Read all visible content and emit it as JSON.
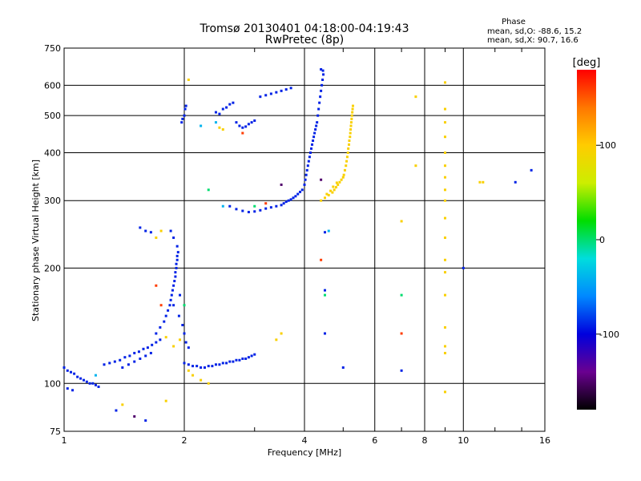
{
  "chart_data": {
    "type": "scatter",
    "title": "Tromsø 20130401 04:18:00-04:19:43",
    "subtitle": "RwPretec (8p)",
    "xlabel": "Frequency [MHz]",
    "ylabel": "Stationary phase Virtual Height [km]",
    "x_scale": "log",
    "y_scale": "log",
    "xlim": [
      1,
      16
    ],
    "ylim": [
      75,
      750
    ],
    "grid": true,
    "x_ticks": [
      1,
      2,
      4,
      6,
      8,
      10,
      16
    ],
    "y_ticks": [
      75,
      100,
      200,
      300,
      400,
      500,
      600,
      750
    ],
    "colorbar": {
      "label": "[deg]",
      "ticks": [
        -100,
        0,
        100
      ],
      "range": [
        -180,
        180
      ],
      "palette": [
        "#000000",
        "#6a0090",
        "#0000dd",
        "#0088ff",
        "#00dddd",
        "#00dd00",
        "#ccee00",
        "#ffcc00",
        "#ff7700",
        "#ff0000"
      ]
    },
    "stats": {
      "heading": "Phase",
      "o_line": "mean, sd,O: -88.6, 15.2",
      "x_line": "mean, sd,X:  90.7, 16.6"
    },
    "series": [
      {
        "mode": "O",
        "phase": -90,
        "points": [
          [
            1.0,
            110
          ],
          [
            1.02,
            108
          ],
          [
            1.04,
            107
          ],
          [
            1.06,
            106
          ],
          [
            1.08,
            104
          ],
          [
            1.1,
            103
          ],
          [
            1.12,
            102
          ],
          [
            1.14,
            101
          ],
          [
            1.16,
            100
          ],
          [
            1.18,
            100
          ],
          [
            1.2,
            99
          ],
          [
            1.22,
            98
          ],
          [
            1.02,
            97
          ],
          [
            1.05,
            96
          ],
          [
            1.26,
            112
          ],
          [
            1.3,
            113
          ],
          [
            1.34,
            114
          ],
          [
            1.38,
            115
          ],
          [
            1.42,
            117
          ],
          [
            1.46,
            118
          ],
          [
            1.5,
            120
          ],
          [
            1.54,
            121
          ],
          [
            1.58,
            123
          ],
          [
            1.62,
            124
          ],
          [
            1.66,
            126
          ],
          [
            1.7,
            128
          ],
          [
            1.74,
            130
          ],
          [
            1.4,
            110
          ],
          [
            1.45,
            112
          ],
          [
            1.5,
            114
          ],
          [
            1.55,
            116
          ],
          [
            1.6,
            118
          ],
          [
            1.65,
            120
          ],
          [
            1.7,
            135
          ],
          [
            1.74,
            140
          ],
          [
            1.78,
            145
          ],
          [
            1.8,
            150
          ],
          [
            1.82,
            155
          ],
          [
            1.84,
            160
          ],
          [
            1.85,
            165
          ],
          [
            1.86,
            170
          ],
          [
            1.87,
            175
          ],
          [
            1.88,
            180
          ],
          [
            1.89,
            185
          ],
          [
            1.9,
            190
          ],
          [
            1.9,
            195
          ],
          [
            1.91,
            200
          ],
          [
            1.91,
            205
          ],
          [
            1.92,
            210
          ],
          [
            1.92,
            215
          ],
          [
            1.93,
            220
          ],
          [
            1.92,
            228
          ],
          [
            1.88,
            240
          ],
          [
            1.85,
            250
          ],
          [
            1.88,
            160
          ],
          [
            1.94,
            150
          ],
          [
            1.98,
            142
          ],
          [
            2.0,
            135
          ],
          [
            2.02,
            128
          ],
          [
            2.05,
            124
          ],
          [
            1.95,
            170
          ],
          [
            2.0,
            113
          ],
          [
            2.05,
            112
          ],
          [
            2.1,
            111
          ],
          [
            2.15,
            111
          ],
          [
            2.2,
            110
          ],
          [
            2.25,
            110
          ],
          [
            2.3,
            111
          ],
          [
            2.35,
            111
          ],
          [
            2.4,
            112
          ],
          [
            2.45,
            112
          ],
          [
            2.5,
            113
          ],
          [
            2.55,
            113
          ],
          [
            2.6,
            114
          ],
          [
            2.65,
            114
          ],
          [
            2.7,
            115
          ],
          [
            2.75,
            115
          ],
          [
            2.8,
            116
          ],
          [
            2.85,
            116
          ],
          [
            2.9,
            117
          ],
          [
            2.95,
            118
          ],
          [
            3.0,
            119
          ],
          [
            1.55,
            255
          ],
          [
            1.6,
            250
          ],
          [
            1.65,
            248
          ],
          [
            1.35,
            85
          ],
          [
            1.6,
            80
          ],
          [
            1.97,
            480
          ],
          [
            1.98,
            490
          ],
          [
            2.0,
            500
          ],
          [
            2.01,
            520
          ],
          [
            2.02,
            530
          ],
          [
            2.4,
            510
          ],
          [
            2.45,
            505
          ],
          [
            2.5,
            520
          ],
          [
            2.55,
            525
          ],
          [
            2.6,
            535
          ],
          [
            2.65,
            540
          ],
          [
            2.7,
            480
          ],
          [
            2.75,
            470
          ],
          [
            2.8,
            465
          ],
          [
            2.85,
            468
          ],
          [
            2.9,
            475
          ],
          [
            2.95,
            480
          ],
          [
            3.0,
            485
          ],
          [
            3.1,
            560
          ],
          [
            3.2,
            565
          ],
          [
            3.3,
            570
          ],
          [
            3.4,
            575
          ],
          [
            3.5,
            580
          ],
          [
            3.6,
            585
          ],
          [
            3.7,
            590
          ],
          [
            2.6,
            290
          ],
          [
            2.7,
            285
          ],
          [
            2.8,
            282
          ],
          [
            2.9,
            280
          ],
          [
            3.0,
            281
          ],
          [
            3.1,
            283
          ],
          [
            3.2,
            286
          ],
          [
            3.3,
            288
          ],
          [
            3.4,
            290
          ],
          [
            3.5,
            292
          ],
          [
            3.55,
            295
          ],
          [
            3.6,
            298
          ],
          [
            3.65,
            300
          ],
          [
            3.7,
            302
          ],
          [
            3.75,
            305
          ],
          [
            3.8,
            308
          ],
          [
            3.85,
            312
          ],
          [
            3.9,
            316
          ],
          [
            3.95,
            320
          ],
          [
            4.0,
            330
          ],
          [
            4.02,
            340
          ],
          [
            4.04,
            350
          ],
          [
            4.06,
            360
          ],
          [
            4.08,
            370
          ],
          [
            4.1,
            380
          ],
          [
            4.12,
            390
          ],
          [
            4.14,
            400
          ],
          [
            4.16,
            410
          ],
          [
            4.18,
            420
          ],
          [
            4.2,
            430
          ],
          [
            4.22,
            440
          ],
          [
            4.24,
            450
          ],
          [
            4.26,
            460
          ],
          [
            4.28,
            470
          ],
          [
            4.3,
            480
          ],
          [
            4.32,
            500
          ],
          [
            4.34,
            520
          ],
          [
            4.36,
            540
          ],
          [
            4.38,
            560
          ],
          [
            4.4,
            580
          ],
          [
            4.42,
            600
          ],
          [
            4.44,
            620
          ],
          [
            4.46,
            640
          ],
          [
            4.4,
            660
          ],
          [
            4.45,
            655
          ],
          [
            4.5,
            248
          ],
          [
            4.5,
            175
          ],
          [
            4.5,
            135
          ],
          [
            5.0,
            110
          ],
          [
            7.0,
            108
          ],
          [
            13.5,
            335
          ],
          [
            14.8,
            360
          ],
          [
            10.0,
            200
          ]
        ]
      },
      {
        "mode": "X",
        "phase": 95,
        "points": [
          [
            4.4,
            300
          ],
          [
            4.5,
            305
          ],
          [
            4.6,
            310
          ],
          [
            4.7,
            315
          ],
          [
            4.75,
            320
          ],
          [
            4.8,
            325
          ],
          [
            4.85,
            330
          ],
          [
            4.9,
            335
          ],
          [
            4.95,
            340
          ],
          [
            5.0,
            345
          ],
          [
            5.02,
            350
          ],
          [
            5.05,
            360
          ],
          [
            5.08,
            370
          ],
          [
            5.1,
            380
          ],
          [
            5.12,
            390
          ],
          [
            5.14,
            400
          ],
          [
            5.15,
            410
          ],
          [
            5.17,
            420
          ],
          [
            5.18,
            430
          ],
          [
            5.2,
            440
          ],
          [
            5.21,
            450
          ],
          [
            5.22,
            460
          ],
          [
            5.23,
            470
          ],
          [
            5.24,
            480
          ],
          [
            5.25,
            490
          ],
          [
            5.26,
            500
          ],
          [
            5.27,
            510
          ],
          [
            5.28,
            520
          ],
          [
            5.29,
            530
          ],
          [
            4.55,
            312
          ],
          [
            4.65,
            318
          ],
          [
            4.72,
            326
          ],
          [
            4.82,
            334
          ],
          [
            1.88,
            125
          ],
          [
            1.95,
            130
          ],
          [
            2.05,
            108
          ],
          [
            2.1,
            105
          ],
          [
            2.2,
            102
          ],
          [
            2.3,
            100
          ],
          [
            2.45,
            465
          ],
          [
            2.5,
            460
          ],
          [
            2.05,
            620
          ],
          [
            1.7,
            240
          ],
          [
            1.75,
            250
          ],
          [
            1.8,
            132
          ],
          [
            3.4,
            130
          ],
          [
            3.5,
            135
          ],
          [
            9.0,
            610
          ],
          [
            9.0,
            520
          ],
          [
            9.0,
            480
          ],
          [
            9.0,
            440
          ],
          [
            9.0,
            400
          ],
          [
            9.0,
            370
          ],
          [
            9.0,
            345
          ],
          [
            9.0,
            320
          ],
          [
            9.0,
            300
          ],
          [
            9.0,
            270
          ],
          [
            9.0,
            240
          ],
          [
            9.0,
            210
          ],
          [
            9.0,
            195
          ],
          [
            9.0,
            170
          ],
          [
            9.0,
            140
          ],
          [
            9.0,
            125
          ],
          [
            9.0,
            120
          ],
          [
            9.0,
            95
          ],
          [
            7.6,
            560
          ],
          [
            7.6,
            370
          ],
          [
            11.0,
            335
          ],
          [
            11.2,
            335
          ],
          [
            1.4,
            88
          ],
          [
            1.8,
            90
          ],
          [
            7.0,
            265
          ]
        ]
      },
      {
        "mode": "other",
        "phase": -150,
        "points": [
          [
            1.5,
            82
          ],
          [
            3.5,
            330
          ],
          [
            4.4,
            340
          ]
        ]
      },
      {
        "mode": "other",
        "phase": 160,
        "points": [
          [
            1.7,
            180
          ],
          [
            1.75,
            160
          ],
          [
            2.8,
            450
          ],
          [
            4.4,
            210
          ],
          [
            7.0,
            135
          ],
          [
            3.2,
            295
          ]
        ]
      },
      {
        "mode": "other",
        "phase": 0,
        "points": [
          [
            3.0,
            290
          ],
          [
            4.5,
            170
          ],
          [
            7.0,
            170
          ],
          [
            2.0,
            160
          ],
          [
            2.3,
            320
          ]
        ]
      },
      {
        "mode": "other",
        "phase": -40,
        "points": [
          [
            2.2,
            470
          ],
          [
            2.4,
            480
          ],
          [
            1.2,
            105
          ],
          [
            2.5,
            290
          ],
          [
            4.6,
            250
          ]
        ]
      }
    ]
  }
}
